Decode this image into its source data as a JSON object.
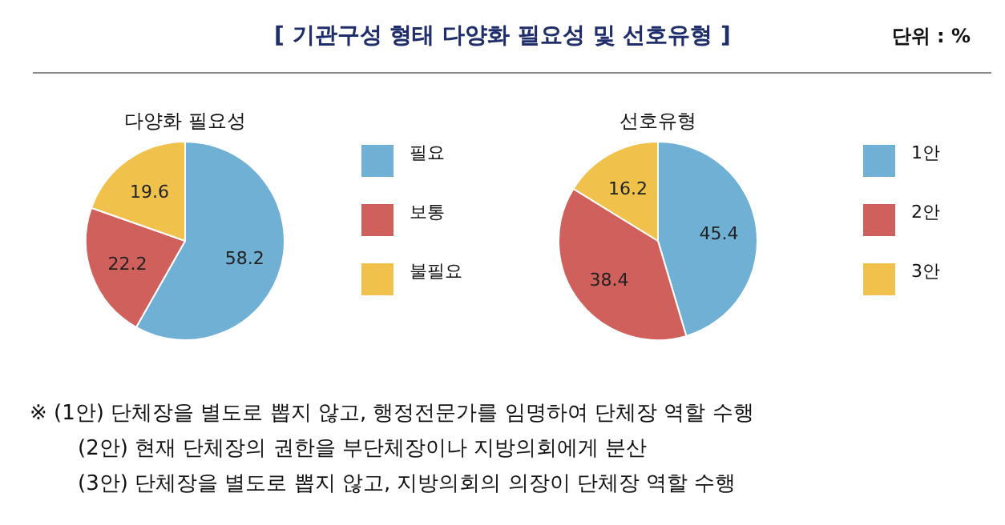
{
  "chart_data": [
    {
      "type": "pie",
      "title": "다양화 필요성",
      "categories": [
        "필요",
        "보통",
        "불필요"
      ],
      "values": [
        58.2,
        22.2,
        19.6
      ],
      "colors": [
        "#70b0d5",
        "#d0605c",
        "#f0c24c"
      ],
      "data_labels": true,
      "legend": "right",
      "annotations": [
        "[ 기관구성 형태 다양화 필요성 및 선호유형 ]",
        "단위 : %",
        "※ (1안) 단체장을 별도로 뽑지 않고, 행정전문가를 임명하여 단체장 역할 수행",
        "(2안) 현재 단체장의 권한을 부단체장이나 지방의회에게 분산",
        "(3안) 단체장을 별도로 뽑지 않고, 지방의회의 의장이 단체장 역할 수행"
      ]
    },
    {
      "type": "pie",
      "title": "선호유형",
      "categories": [
        "1안",
        "2안",
        "3안"
      ],
      "values": [
        45.4,
        38.4,
        16.2
      ],
      "colors": [
        "#70b0d5",
        "#d0605c",
        "#f0c24c"
      ],
      "data_labels": true,
      "legend": "right"
    }
  ]
}
